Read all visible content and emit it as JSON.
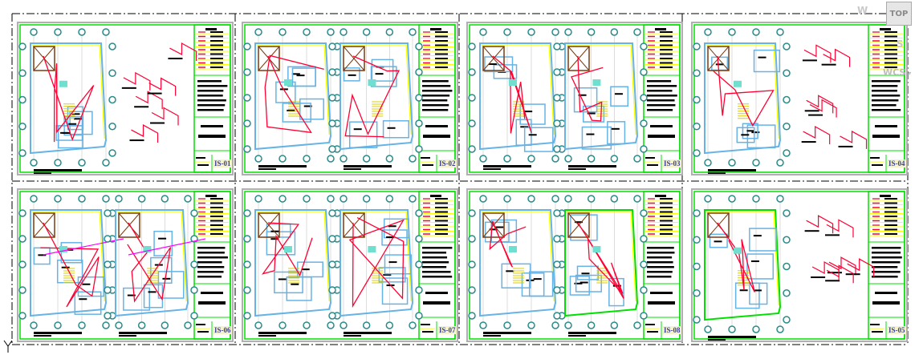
{
  "viewport": {
    "viewcube_label": "TOP",
    "compass_west": "W",
    "compass_south": "S",
    "ucs_label": "WCS",
    "ucs_menu_icon": "chevron-down-icon"
  },
  "sheets": [
    {
      "label": "IS-01"
    },
    {
      "label": "IS-02"
    },
    {
      "label": "IS-03"
    },
    {
      "label": "IS-04"
    },
    {
      "label": "IS-06"
    },
    {
      "label": "IS-07"
    },
    {
      "label": "IS-08"
    },
    {
      "label": "IS-05"
    }
  ],
  "colors": {
    "frame": "#00e000",
    "wall": "#66b3e6",
    "yellow": "#ffff00",
    "pipe": "#ff0033",
    "brown": "#7a3b10",
    "magenta": "#ff00ff",
    "grid_bubble": "#2a8a8a",
    "teal_fill": "#6fe0d0"
  }
}
